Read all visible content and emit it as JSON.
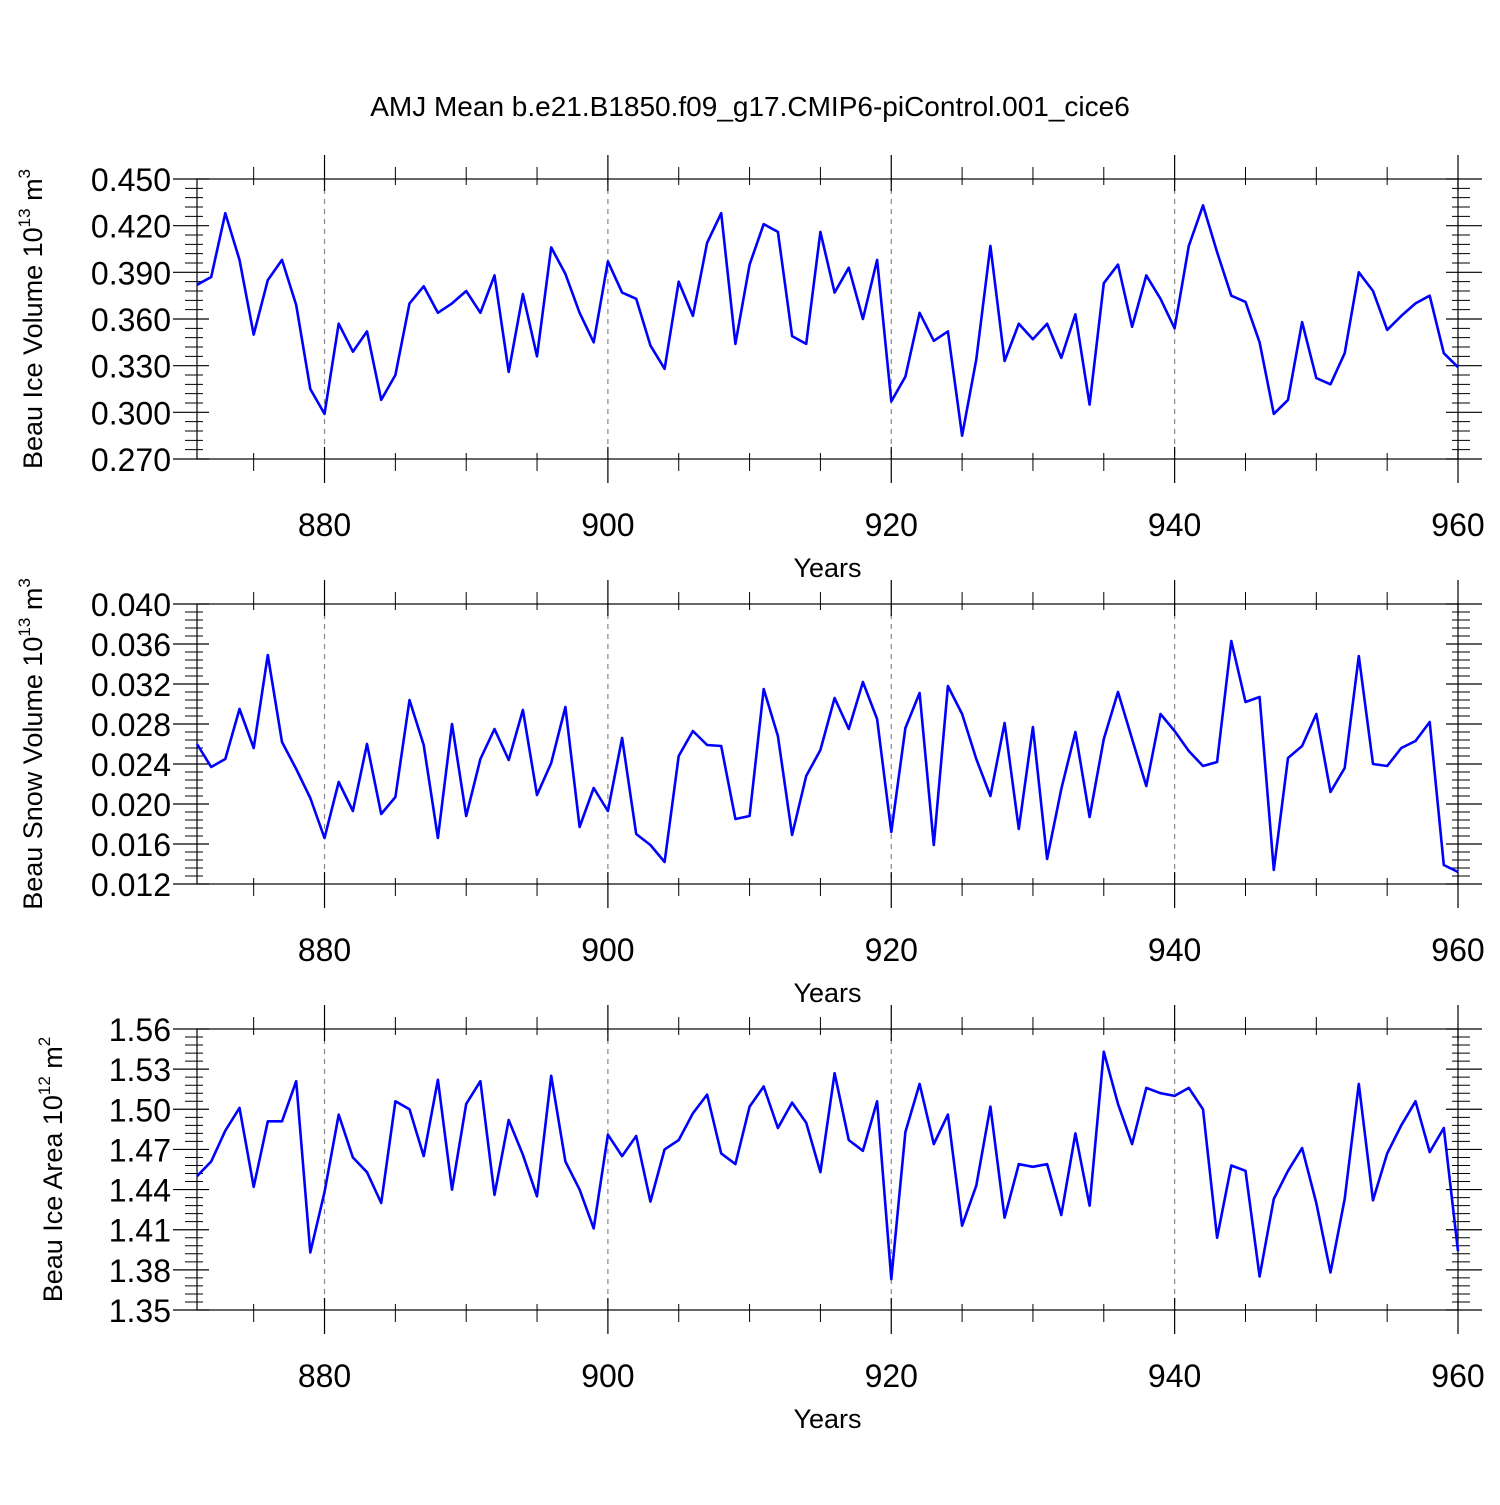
{
  "title": "AMJ Mean b.e21.B1850.f09_g17.CMIP6-piControl.001_cice6",
  "line_color": "#0000ff",
  "chart_data": [
    {
      "type": "line",
      "ylabel": {
        "main": "Beau Ice Volume 10",
        "sup": "13",
        "unit": " m",
        "unitsup": "3"
      },
      "xlabel": "Years",
      "xlim": [
        871,
        960
      ],
      "ylim": [
        0.27,
        0.45
      ],
      "xticks": [
        880,
        900,
        920,
        940,
        960
      ],
      "xtick_labels": [
        "880",
        "900",
        "920",
        "940",
        "960"
      ],
      "yticks": [
        0.27,
        0.3,
        0.33,
        0.36,
        0.39,
        0.42,
        0.45
      ],
      "ytick_labels": [
        "0.270",
        "0.300",
        "0.330",
        "0.360",
        "0.390",
        "0.420",
        "0.450"
      ],
      "grid_x": [
        880,
        900,
        920,
        940
      ],
      "series": [
        {
          "x": [
            871,
            872,
            873,
            874,
            875,
            876,
            877,
            878,
            879,
            880,
            881,
            882,
            883,
            884,
            885,
            886,
            887,
            888,
            889,
            890,
            891,
            892,
            893,
            894,
            895,
            896,
            897,
            898,
            899,
            900,
            901,
            902,
            903,
            904,
            905,
            906,
            907,
            908,
            909,
            910,
            911,
            912,
            913,
            914,
            915,
            916,
            917,
            918,
            919,
            920,
            921,
            922,
            923,
            924,
            925,
            926,
            927,
            928,
            929,
            930,
            931,
            932,
            933,
            934,
            935,
            936,
            937,
            938,
            939,
            940,
            941,
            942,
            943,
            944,
            945,
            946,
            947,
            948,
            949,
            950,
            951,
            952,
            953,
            954,
            955,
            956,
            957,
            958,
            959,
            960
          ],
          "values": [
            0.382,
            0.387,
            0.428,
            0.398,
            0.35,
            0.385,
            0.398,
            0.369,
            0.315,
            0.299,
            0.357,
            0.339,
            0.352,
            0.308,
            0.324,
            0.37,
            0.381,
            0.364,
            0.37,
            0.378,
            0.364,
            0.388,
            0.326,
            0.376,
            0.336,
            0.406,
            0.389,
            0.364,
            0.345,
            0.397,
            0.377,
            0.373,
            0.343,
            0.328,
            0.384,
            0.362,
            0.409,
            0.428,
            0.344,
            0.395,
            0.421,
            0.416,
            0.349,
            0.344,
            0.416,
            0.377,
            0.393,
            0.36,
            0.398,
            0.307,
            0.323,
            0.364,
            0.346,
            0.352,
            0.285,
            0.334,
            0.407,
            0.333,
            0.357,
            0.347,
            0.357,
            0.335,
            0.363,
            0.305,
            0.383,
            0.395,
            0.355,
            0.388,
            0.373,
            0.354,
            0.407,
            0.433,
            0.403,
            0.375,
            0.371,
            0.345,
            0.299,
            0.308,
            0.358,
            0.322,
            0.318,
            0.338,
            0.39,
            0.378,
            0.353,
            0.362,
            0.37,
            0.375,
            0.338,
            0.329
          ]
        }
      ]
    },
    {
      "type": "line",
      "ylabel": {
        "main": "Beau Snow Volume 10",
        "sup": "13",
        "unit": " m",
        "unitsup": "3"
      },
      "xlabel": "Years",
      "xlim": [
        871,
        960
      ],
      "ylim": [
        0.012,
        0.04
      ],
      "xticks": [
        880,
        900,
        920,
        940,
        960
      ],
      "xtick_labels": [
        "880",
        "900",
        "920",
        "940",
        "960"
      ],
      "yticks": [
        0.012,
        0.016,
        0.02,
        0.024,
        0.028,
        0.032,
        0.036,
        0.04
      ],
      "ytick_labels": [
        "0.012",
        "0.016",
        "0.020",
        "0.024",
        "0.028",
        "0.032",
        "0.036",
        "0.040"
      ],
      "grid_x": [
        880,
        900,
        920,
        940
      ],
      "series": [
        {
          "x": [
            871,
            872,
            873,
            874,
            875,
            876,
            877,
            878,
            879,
            880,
            881,
            882,
            883,
            884,
            885,
            886,
            887,
            888,
            889,
            890,
            891,
            892,
            893,
            894,
            895,
            896,
            897,
            898,
            899,
            900,
            901,
            902,
            903,
            904,
            905,
            906,
            907,
            908,
            909,
            910,
            911,
            912,
            913,
            914,
            915,
            916,
            917,
            918,
            919,
            920,
            921,
            922,
            923,
            924,
            925,
            926,
            927,
            928,
            929,
            930,
            931,
            932,
            933,
            934,
            935,
            936,
            937,
            938,
            939,
            940,
            941,
            942,
            943,
            944,
            945,
            946,
            947,
            948,
            949,
            950,
            951,
            952,
            953,
            954,
            955,
            956,
            957,
            958,
            959,
            960
          ],
          "values": [
            0.026,
            0.0237,
            0.0245,
            0.0295,
            0.0256,
            0.0349,
            0.0262,
            0.0235,
            0.0206,
            0.0166,
            0.0222,
            0.0193,
            0.026,
            0.019,
            0.0207,
            0.0304,
            0.0259,
            0.0166,
            0.028,
            0.0188,
            0.0245,
            0.0275,
            0.0244,
            0.0294,
            0.0209,
            0.0241,
            0.0297,
            0.0177,
            0.0216,
            0.0193,
            0.0266,
            0.017,
            0.0159,
            0.0142,
            0.0248,
            0.0273,
            0.0259,
            0.0258,
            0.0185,
            0.0188,
            0.0315,
            0.0268,
            0.0169,
            0.0228,
            0.0254,
            0.0306,
            0.0275,
            0.0322,
            0.0285,
            0.0172,
            0.0276,
            0.0311,
            0.0159,
            0.0318,
            0.029,
            0.0245,
            0.0208,
            0.0281,
            0.0175,
            0.0277,
            0.0145,
            0.0215,
            0.0272,
            0.0187,
            0.0265,
            0.0312,
            0.0265,
            0.0218,
            0.029,
            0.0273,
            0.0253,
            0.0238,
            0.0242,
            0.0363,
            0.0302,
            0.0307,
            0.0134,
            0.0246,
            0.0258,
            0.029,
            0.0212,
            0.0236,
            0.0348,
            0.024,
            0.0238,
            0.0256,
            0.0263,
            0.0282,
            0.0139,
            0.0132
          ]
        }
      ]
    },
    {
      "type": "line",
      "ylabel": {
        "main": "Beau Ice Area 10",
        "sup": "12",
        "unit": " m",
        "unitsup": "2"
      },
      "xlabel": "Years",
      "xlim": [
        871,
        960
      ],
      "ylim": [
        1.35,
        1.56
      ],
      "xticks": [
        880,
        900,
        920,
        940,
        960
      ],
      "xtick_labels": [
        "880",
        "900",
        "920",
        "940",
        "960"
      ],
      "yticks": [
        1.35,
        1.38,
        1.41,
        1.44,
        1.47,
        1.5,
        1.53,
        1.56
      ],
      "ytick_labels": [
        "1.35",
        "1.38",
        "1.41",
        "1.44",
        "1.47",
        "1.50",
        "1.53",
        "1.56"
      ],
      "grid_x": [
        880,
        900,
        920,
        940
      ],
      "series": [
        {
          "x": [
            871,
            872,
            873,
            874,
            875,
            876,
            877,
            878,
            879,
            880,
            881,
            882,
            883,
            884,
            885,
            886,
            887,
            888,
            889,
            890,
            891,
            892,
            893,
            894,
            895,
            896,
            897,
            898,
            899,
            900,
            901,
            902,
            903,
            904,
            905,
            906,
            907,
            908,
            909,
            910,
            911,
            912,
            913,
            914,
            915,
            916,
            917,
            918,
            919,
            920,
            921,
            922,
            923,
            924,
            925,
            926,
            927,
            928,
            929,
            930,
            931,
            932,
            933,
            934,
            935,
            936,
            937,
            938,
            939,
            940,
            941,
            942,
            943,
            944,
            945,
            946,
            947,
            948,
            949,
            950,
            951,
            952,
            953,
            954,
            955,
            956,
            957,
            958,
            959,
            960
          ],
          "values": [
            1.45,
            1.461,
            1.484,
            1.501,
            1.442,
            1.491,
            1.491,
            1.521,
            1.393,
            1.438,
            1.496,
            1.464,
            1.453,
            1.43,
            1.506,
            1.5,
            1.465,
            1.522,
            1.44,
            1.504,
            1.521,
            1.436,
            1.492,
            1.466,
            1.435,
            1.525,
            1.461,
            1.44,
            1.411,
            1.481,
            1.465,
            1.48,
            1.431,
            1.47,
            1.477,
            1.497,
            1.511,
            1.467,
            1.459,
            1.502,
            1.517,
            1.486,
            1.505,
            1.49,
            1.453,
            1.527,
            1.477,
            1.469,
            1.506,
            1.373,
            1.483,
            1.519,
            1.474,
            1.496,
            1.413,
            1.443,
            1.502,
            1.419,
            1.459,
            1.457,
            1.459,
            1.421,
            1.482,
            1.428,
            1.543,
            1.504,
            1.474,
            1.516,
            1.512,
            1.51,
            1.516,
            1.5,
            1.404,
            1.458,
            1.454,
            1.375,
            1.433,
            1.454,
            1.471,
            1.43,
            1.378,
            1.433,
            1.519,
            1.432,
            1.467,
            1.488,
            1.506,
            1.468,
            1.486,
            1.394
          ]
        }
      ]
    }
  ]
}
